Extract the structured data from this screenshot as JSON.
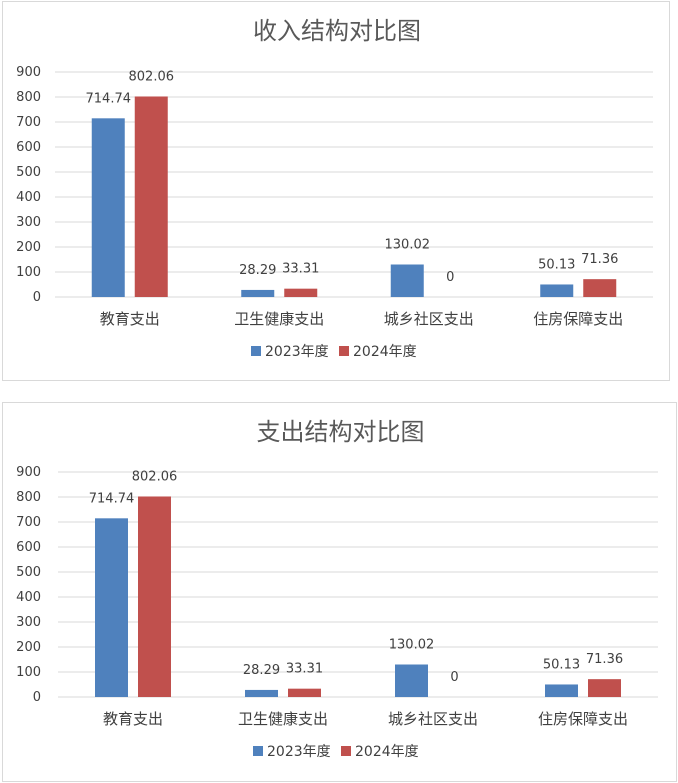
{
  "charts": [
    {
      "type": "bar",
      "title": "收入结构对比图",
      "categories": [
        "教育支出",
        "卫生健康支出",
        "城乡社区支出",
        "住房保障支出"
      ],
      "series": [
        {
          "name": "2023年度",
          "color": "#4f81bd",
          "values": [
            714.74,
            28.29,
            130.02,
            50.13
          ]
        },
        {
          "name": "2024年度",
          "color": "#c0504d",
          "values": [
            802.06,
            33.31,
            0,
            71.36
          ]
        }
      ],
      "ylim": [
        0,
        900
      ],
      "yticks": [
        0,
        100,
        200,
        300,
        400,
        500,
        600,
        700,
        800,
        900
      ],
      "grid": true,
      "legend": "bottom"
    },
    {
      "type": "bar",
      "title": "支出结构对比图",
      "categories": [
        "教育支出",
        "卫生健康支出",
        "城乡社区支出",
        "住房保障支出"
      ],
      "series": [
        {
          "name": "2023年度",
          "color": "#4f81bd",
          "values": [
            714.74,
            28.29,
            130.02,
            50.13
          ]
        },
        {
          "name": "2024年度",
          "color": "#c0504d",
          "values": [
            802.06,
            33.31,
            0,
            71.36
          ]
        }
      ],
      "ylim": [
        0,
        900
      ],
      "yticks": [
        0,
        100,
        200,
        300,
        400,
        500,
        600,
        700,
        800,
        900
      ],
      "grid": true,
      "legend": "bottom"
    }
  ]
}
